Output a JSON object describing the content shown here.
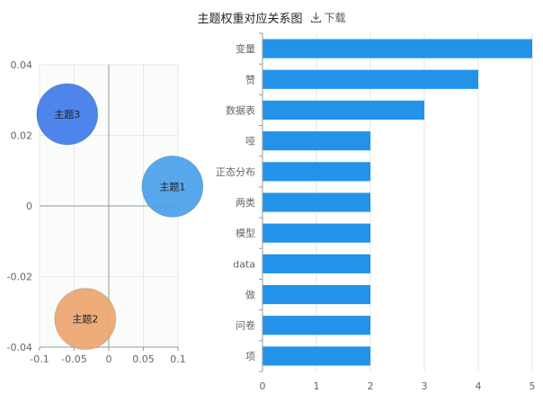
{
  "header": {
    "title": "主题权重对应关系图",
    "download_label": "下载",
    "download_icon": "download-icon"
  },
  "chart_data": [
    {
      "type": "scatter",
      "title": "",
      "xlabel": "",
      "ylabel": "",
      "xlim": [
        -0.1,
        0.1
      ],
      "ylim": [
        -0.04,
        0.04
      ],
      "x_ticks": [
        "-0.1",
        "-0.05",
        "0",
        "0.05",
        "0.1"
      ],
      "y_ticks": [
        "0.04",
        "0.02",
        "0",
        "-0.02",
        "-0.04"
      ],
      "grid": true,
      "points": [
        {
          "label": "主题3",
          "x": -0.06,
          "y": 0.026,
          "color": "#3e7be8"
        },
        {
          "label": "主题1",
          "x": 0.092,
          "y": 0.0055,
          "color": "#4aa0ec"
        },
        {
          "label": "主题2",
          "x": -0.034,
          "y": -0.032,
          "color": "#eba56f"
        }
      ]
    },
    {
      "type": "bar",
      "orientation": "horizontal",
      "title": "",
      "xlabel": "",
      "ylabel": "",
      "xlim": [
        0,
        5
      ],
      "x_ticks": [
        "0",
        "1",
        "2",
        "3",
        "4",
        "5"
      ],
      "grid": true,
      "color": "#2393ea",
      "categories": [
        "变量",
        "赞",
        "数据表",
        "哑",
        "正态分布",
        "两类",
        "模型",
        "data",
        "做",
        "问卷",
        "项"
      ],
      "values": [
        5,
        4,
        3,
        2,
        2,
        2,
        2,
        2,
        2,
        2,
        2
      ]
    }
  ]
}
